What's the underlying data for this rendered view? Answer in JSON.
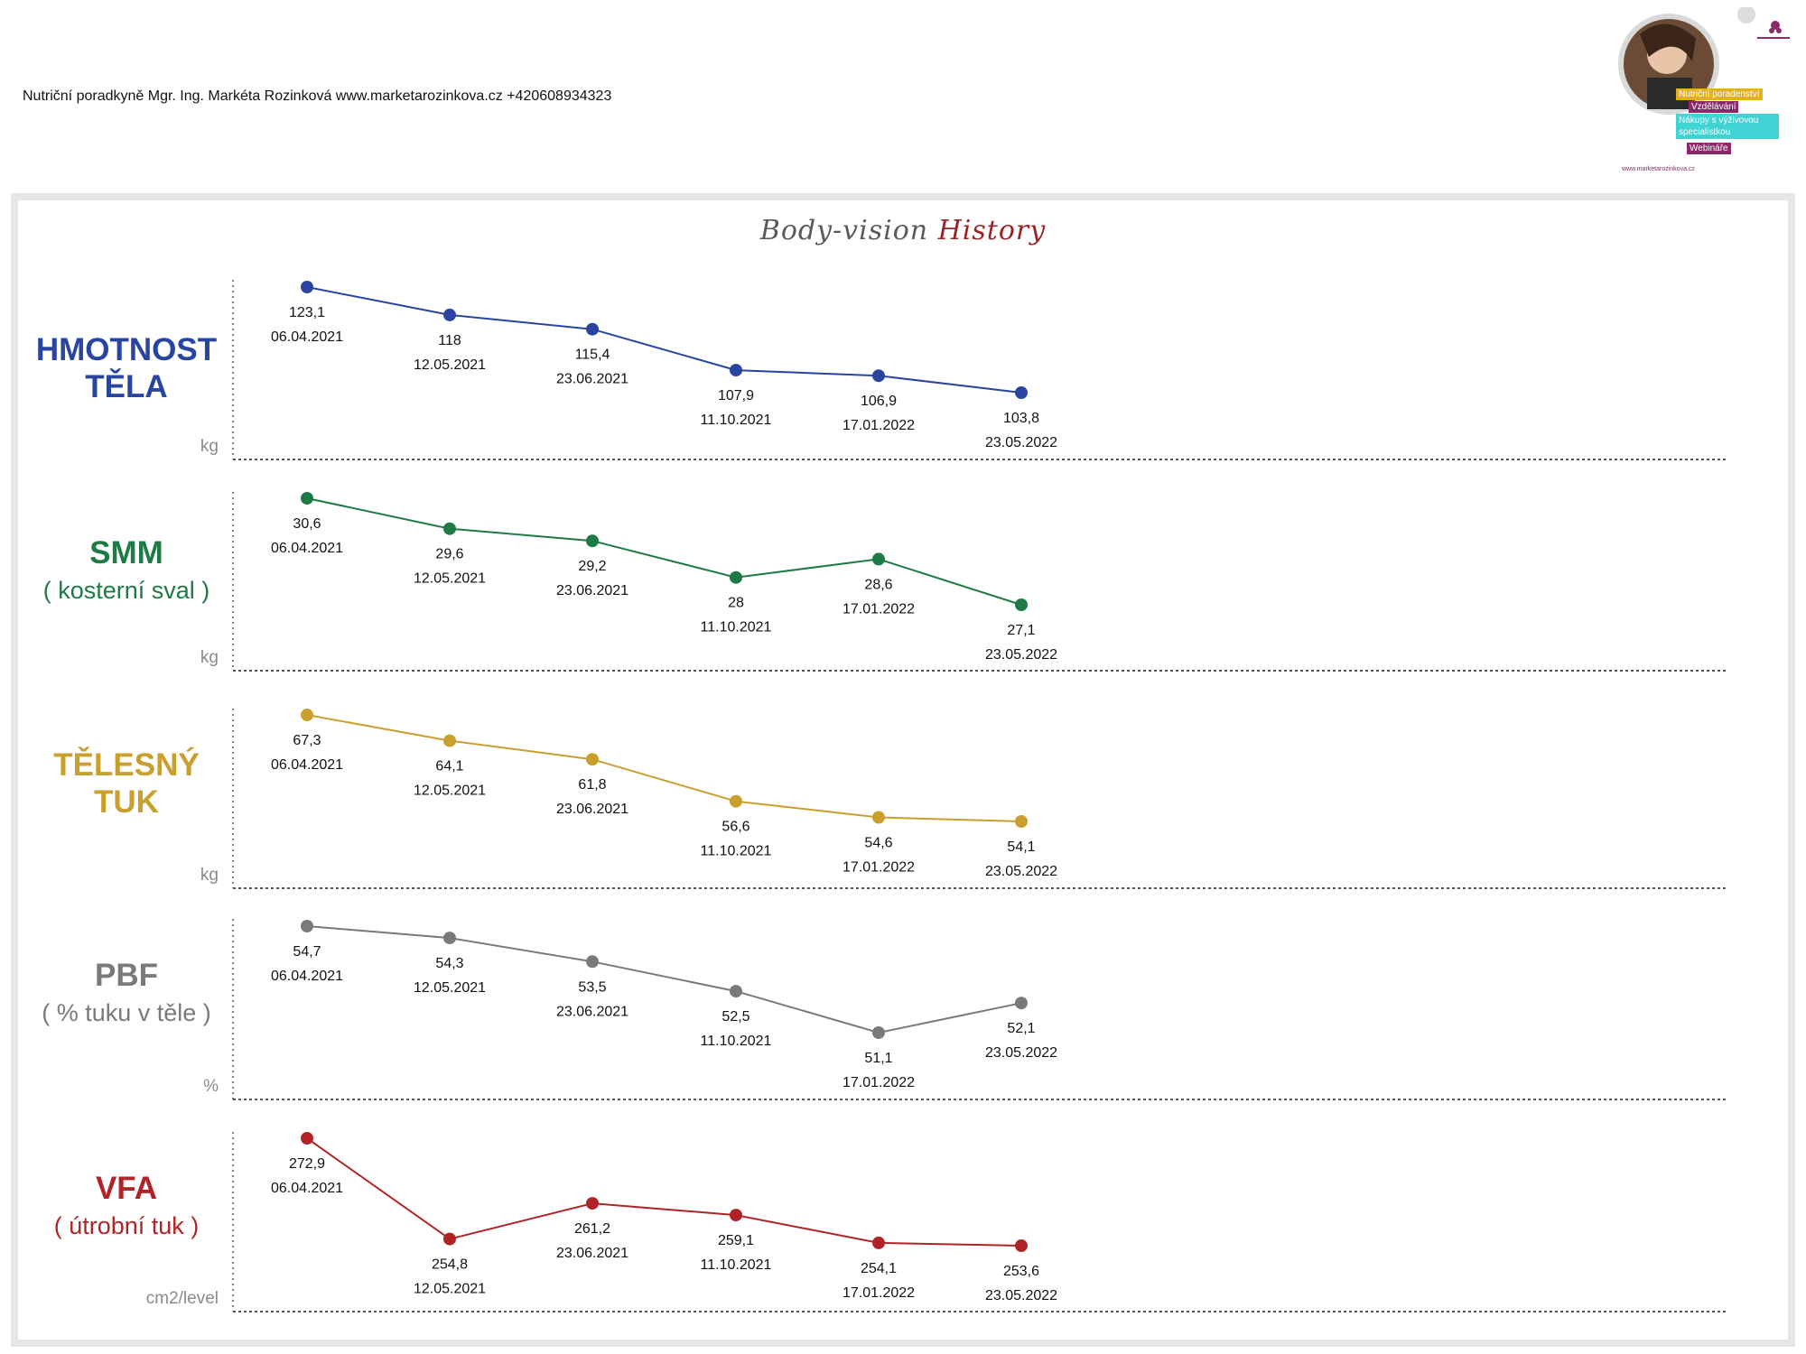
{
  "header": {
    "contact": "Nutriční poradkyně Mgr. Ing. Markéta Rozinková www.marketarozinkova.cz +420608934323"
  },
  "logo": {
    "tags": [
      "Nutriční poradenství",
      "Vzdělávání",
      "Nákupy s výživovou specialistkou",
      "Webináře"
    ],
    "tag_colors": [
      "#e3b21b",
      "#8b2a6b",
      "#3fd3d3",
      "#8b2a6b"
    ],
    "url": "www.marketarozinkova.cz"
  },
  "title": {
    "part1": "Body-vision",
    "part2": "History"
  },
  "chart_data": [
    {
      "type": "line",
      "label_line1": "HMOTNOST",
      "label_line2": "TĚLA",
      "unit": "kg",
      "color": "#2a45a0",
      "x": [
        "06.04.2021",
        "12.05.2021",
        "23.06.2021",
        "11.10.2021",
        "17.01.2022",
        "23.05.2022"
      ],
      "values": [
        123.1,
        118,
        115.4,
        107.9,
        106.9,
        103.8
      ],
      "value_labels": [
        "123,1",
        "118",
        "115,4",
        "107,9",
        "106,9",
        "103,8"
      ],
      "grid": false
    },
    {
      "type": "line",
      "label_line1": "SMM",
      "label_line2": "( kosterní sval )",
      "unit": "kg",
      "color": "#1e7b45",
      "x": [
        "06.04.2021",
        "12.05.2021",
        "23.06.2021",
        "11.10.2021",
        "17.01.2022",
        "23.05.2022"
      ],
      "values": [
        30.6,
        29.6,
        29.2,
        28,
        28.6,
        27.1
      ],
      "value_labels": [
        "30,6",
        "29,6",
        "29,2",
        "28",
        "28,6",
        "27,1"
      ],
      "grid": false
    },
    {
      "type": "line",
      "label_line1": "TĚLESNÝ",
      "label_line2": "TUK",
      "unit": "kg",
      "color": "#c9a02e",
      "x": [
        "06.04.2021",
        "12.05.2021",
        "23.06.2021",
        "11.10.2021",
        "17.01.2022",
        "23.05.2022"
      ],
      "values": [
        67.3,
        64.1,
        61.8,
        56.6,
        54.6,
        54.1
      ],
      "value_labels": [
        "67,3",
        "64,1",
        "61,8",
        "56,6",
        "54,6",
        "54,1"
      ],
      "grid": false
    },
    {
      "type": "line",
      "label_line1": "PBF",
      "label_line2": "( % tuku v těle )",
      "unit": "%",
      "color": "#7a7a7a",
      "x": [
        "06.04.2021",
        "12.05.2021",
        "23.06.2021",
        "11.10.2021",
        "17.01.2022",
        "23.05.2022"
      ],
      "values": [
        54.7,
        54.3,
        53.5,
        52.5,
        51.1,
        52.1
      ],
      "value_labels": [
        "54,7",
        "54,3",
        "53,5",
        "52,5",
        "51,1",
        "52,1"
      ],
      "grid": false
    },
    {
      "type": "line",
      "label_line1": "VFA",
      "label_line2": "( útrobní tuk )",
      "unit": "cm2/level",
      "color": "#b02428",
      "x": [
        "06.04.2021",
        "12.05.2021",
        "23.06.2021",
        "11.10.2021",
        "17.01.2022",
        "23.05.2022"
      ],
      "values": [
        272.9,
        254.8,
        261.2,
        259.1,
        254.1,
        253.6
      ],
      "value_labels": [
        "272,9",
        "254,8",
        "261,2",
        "259,1",
        "254,1",
        "253,6"
      ],
      "grid": false
    }
  ]
}
